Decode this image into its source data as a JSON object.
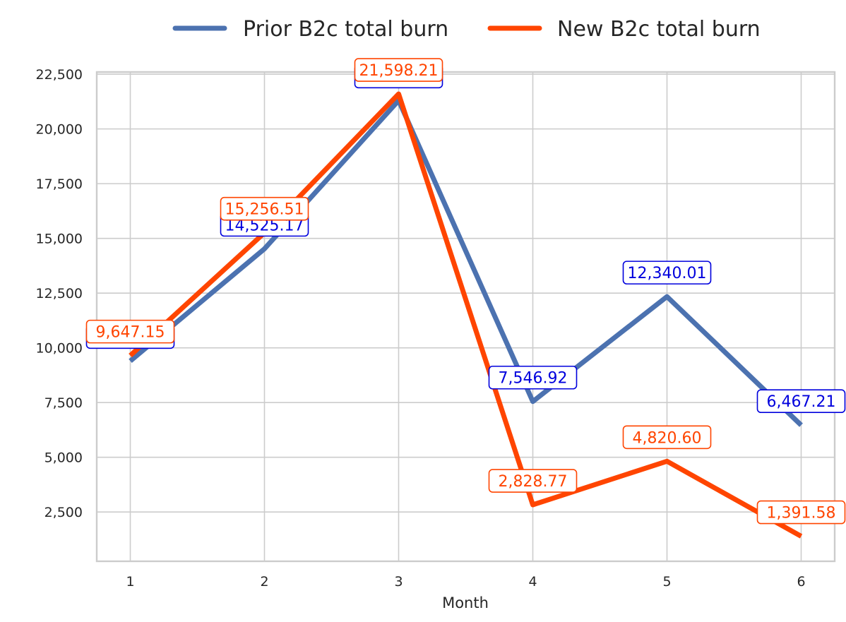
{
  "chart_data": {
    "type": "line",
    "title": "",
    "xlabel": "Month",
    "ylabel": "",
    "x": [
      1,
      2,
      3,
      4,
      5,
      6
    ],
    "ylim": [
      250,
      22600
    ],
    "yticks": [
      2500,
      5000,
      7500,
      10000,
      12500,
      15000,
      17500,
      20000,
      22500
    ],
    "ytick_labels": [
      "2,500",
      "5,000",
      "7,500",
      "10,000",
      "12,500",
      "15,000",
      "17,500",
      "20,000",
      "22,500"
    ],
    "xtick_labels": [
      "1",
      "2",
      "3",
      "4",
      "5",
      "6"
    ],
    "grid": true,
    "legend_position": "top-center",
    "series": [
      {
        "name": "Prior B2c total burn",
        "color": "#4C72B0",
        "label_color": "#0000DD",
        "values": [
          9400,
          14525.17,
          21300,
          7546.92,
          12340.01,
          6467.21
        ],
        "labels": [
          "",
          "14,525.17",
          "",
          "7,546.92",
          "12,340.01",
          "6,467.21"
        ]
      },
      {
        "name": "New B2c total burn",
        "color": "#FF4500",
        "label_color": "#FF4500",
        "values": [
          9647.15,
          15256.51,
          21598.21,
          2828.77,
          4820.6,
          1391.58
        ],
        "labels": [
          "9,647.15",
          "15,256.51",
          "21,598.21",
          "2,828.77",
          "4,820.60",
          "1,391.58"
        ]
      }
    ]
  }
}
